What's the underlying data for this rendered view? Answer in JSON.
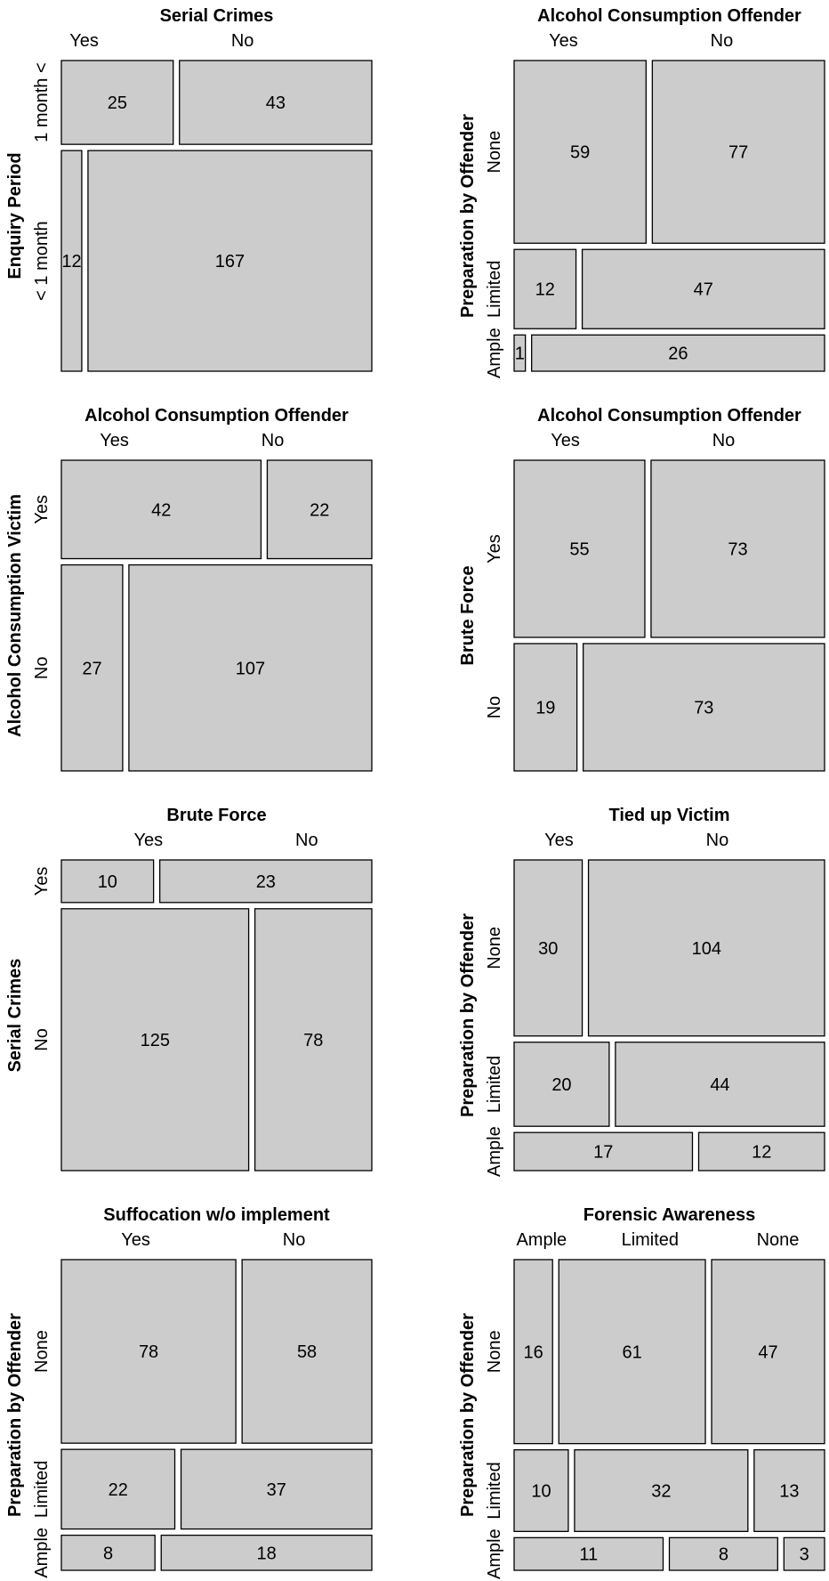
{
  "chart_data": [
    {
      "type": "mosaic",
      "title": "Serial Crimes",
      "ylabel": "Enquiry Period",
      "col_labels": [
        "Yes",
        "No"
      ],
      "row_labels": [
        "1 month <",
        "< 1 month"
      ],
      "counts": [
        [
          25,
          43
        ],
        [
          12,
          167
        ]
      ]
    },
    {
      "type": "mosaic",
      "title": "Alcohol Consumption Offender",
      "ylabel": "Preparation by Offender",
      "col_labels": [
        "Yes",
        "No"
      ],
      "row_labels": [
        "None",
        "Limited",
        "Ample"
      ],
      "counts": [
        [
          59,
          77
        ],
        [
          12,
          47
        ],
        [
          1,
          26
        ]
      ]
    },
    {
      "type": "mosaic",
      "title": "Alcohol Consumption Offender",
      "ylabel": "Alcohol Consumption Victim",
      "col_labels": [
        "Yes",
        "No"
      ],
      "row_labels": [
        "Yes",
        "No"
      ],
      "counts": [
        [
          42,
          22
        ],
        [
          27,
          107
        ]
      ]
    },
    {
      "type": "mosaic",
      "title": "Alcohol Consumption Offender",
      "ylabel": "Brute Force",
      "col_labels": [
        "Yes",
        "No"
      ],
      "row_labels": [
        "Yes",
        "No"
      ],
      "counts": [
        [
          55,
          73
        ],
        [
          19,
          73
        ]
      ]
    },
    {
      "type": "mosaic",
      "title": "Brute Force",
      "ylabel": "Serial Crimes",
      "col_labels": [
        "Yes",
        "No"
      ],
      "row_labels": [
        "Yes",
        "No"
      ],
      "counts": [
        [
          10,
          23
        ],
        [
          125,
          78
        ]
      ]
    },
    {
      "type": "mosaic",
      "title": "Tied up Victim",
      "ylabel": "Preparation by Offender",
      "col_labels": [
        "Yes",
        "No"
      ],
      "row_labels": [
        "None",
        "Limited",
        "Ample"
      ],
      "counts": [
        [
          30,
          104
        ],
        [
          20,
          44
        ],
        [
          17,
          12
        ]
      ]
    },
    {
      "type": "mosaic",
      "title": "Suffocation w/o implement",
      "ylabel": "Preparation by Offender",
      "col_labels": [
        "Yes",
        "No"
      ],
      "row_labels": [
        "None",
        "Limited",
        "Ample"
      ],
      "counts": [
        [
          78,
          58
        ],
        [
          22,
          37
        ],
        [
          8,
          18
        ]
      ]
    },
    {
      "type": "mosaic",
      "title": "Forensic Awareness",
      "ylabel": "Preparation by Offender",
      "col_labels": [
        "Ample",
        "Limited",
        "None"
      ],
      "row_labels": [
        "None",
        "Limited",
        "Ample"
      ],
      "counts": [
        [
          16,
          61,
          47
        ],
        [
          10,
          32,
          13
        ],
        [
          11,
          8,
          3
        ]
      ]
    }
  ]
}
